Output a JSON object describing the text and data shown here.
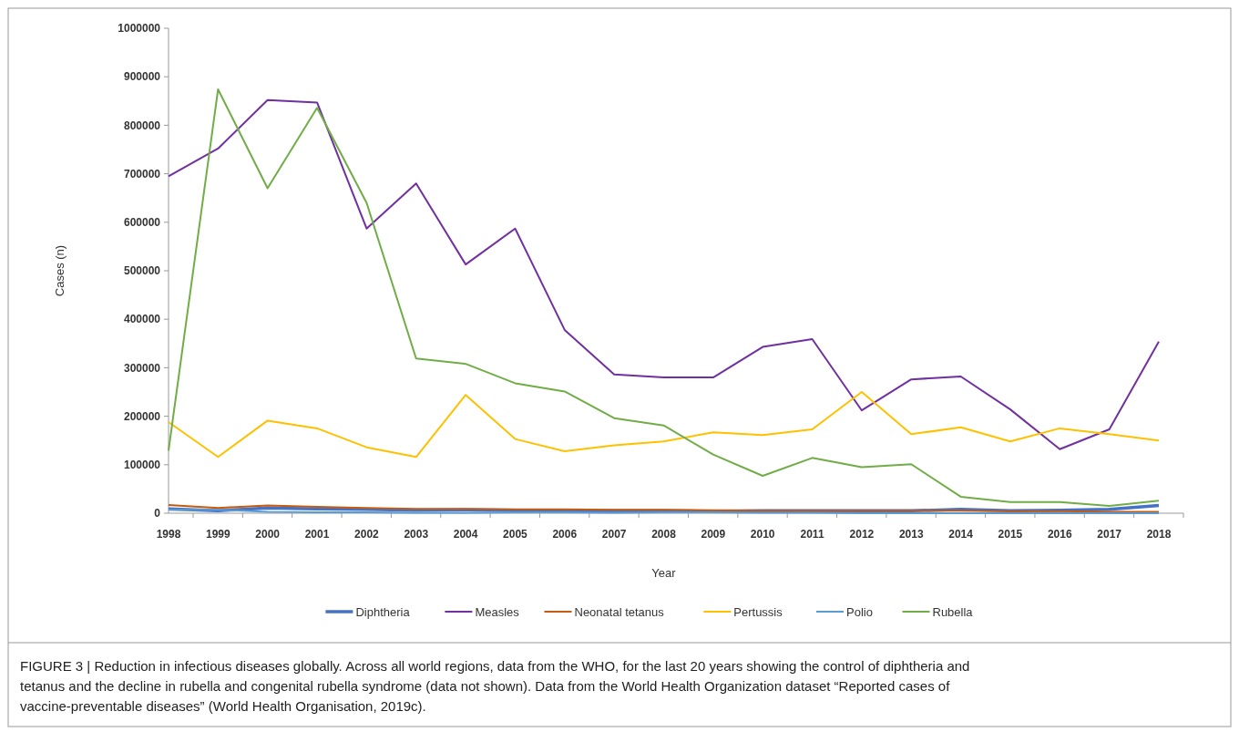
{
  "chart_data": {
    "type": "line",
    "xlabel": "Year",
    "ylabel": "Cases (n)",
    "categories": [
      "1998",
      "1999",
      "2000",
      "2001",
      "2002",
      "2003",
      "2004",
      "2005",
      "2006",
      "2007",
      "2008",
      "2009",
      "2010",
      "2011",
      "2012",
      "2013",
      "2014",
      "2015",
      "2016",
      "2017",
      "2018"
    ],
    "series": [
      {
        "name": "Diphtheria",
        "color": "#4472c4",
        "values": [
          9000,
          5000,
          11000,
          9000,
          8000,
          6000,
          7000,
          6000,
          5000,
          5000,
          5000,
          4000,
          5000,
          5000,
          5000,
          5000,
          8000,
          5000,
          6000,
          8000,
          16000
        ]
      },
      {
        "name": "Measles",
        "color": "#7030a0",
        "values": [
          695000,
          752000,
          852000,
          847000,
          587000,
          680000,
          513000,
          587000,
          378000,
          286000,
          280000,
          280000,
          343000,
          359000,
          212000,
          276000,
          282000,
          214000,
          132000,
          173000,
          354000
        ]
      },
      {
        "name": "Neonatal tetanus",
        "color": "#c55a11",
        "values": [
          17000,
          11000,
          16000,
          13000,
          11000,
          9000,
          9000,
          8000,
          8000,
          7000,
          7000,
          6000,
          5000,
          5000,
          5000,
          5000,
          5000,
          4000,
          4000,
          3000,
          3000
        ]
      },
      {
        "name": "Pertussis",
        "color": "#ffc000",
        "values": [
          188000,
          116000,
          191000,
          175000,
          136000,
          116000,
          244000,
          153000,
          128000,
          140000,
          148000,
          167000,
          161000,
          173000,
          250000,
          163000,
          177000,
          148000,
          175000,
          163000,
          150000
        ]
      },
      {
        "name": "Polio",
        "color": "#5b9bd5",
        "values": [
          7000,
          7000,
          3000,
          2000,
          2000,
          1000,
          1000,
          2000,
          2000,
          1000,
          2000,
          2000,
          1000,
          1000,
          0,
          0,
          0,
          0,
          0,
          0,
          0
        ]
      },
      {
        "name": "Rubella",
        "color": "#70ad47",
        "values": [
          129000,
          874000,
          670000,
          836000,
          640000,
          319000,
          308000,
          268000,
          251000,
          196000,
          181000,
          121000,
          77000,
          114000,
          95000,
          101000,
          34000,
          23000,
          23000,
          15000,
          26000
        ]
      }
    ],
    "ylim": [
      0,
      1000000
    ],
    "yticks": [
      0,
      100000,
      200000,
      300000,
      400000,
      500000,
      600000,
      700000,
      800000,
      900000,
      1000000
    ],
    "grid": false,
    "legend": "bottom",
    "marker": "none",
    "line_style": "solid",
    "annotations": [
      "FIGURE 3 | Reduction in infectious diseases globally. Across all world regions, data from the WHO, for the last 20 years showing the control of diphtheria and tetanus and the decline in rubella and congenital rubella syndrome (data not shown). Data from the World Health Organization dataset “Reported cases of vaccine-preventable diseases” (World Health Organisation, 2019c)."
    ]
  }
}
